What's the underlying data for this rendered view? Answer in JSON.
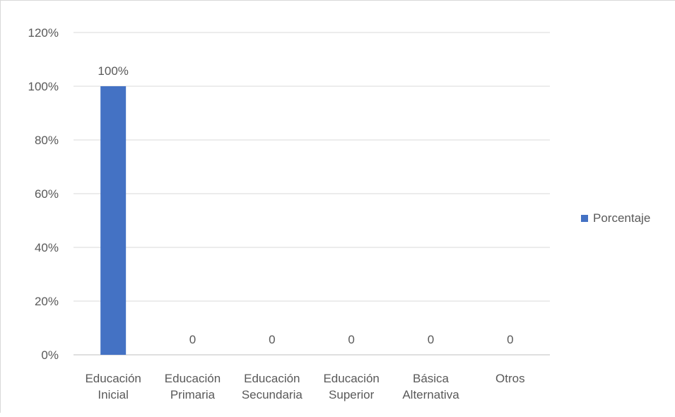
{
  "chart_data": {
    "type": "bar",
    "categories": [
      [
        "Educación",
        "Inicial"
      ],
      [
        "Educación",
        "Primaria"
      ],
      [
        "Educación",
        "Secundaria"
      ],
      [
        "Educación",
        "Superior"
      ],
      [
        "Básica",
        "Alternativa"
      ],
      [
        "Otros"
      ]
    ],
    "series": [
      {
        "name": "Porcentaje",
        "values": [
          1.0,
          0,
          0,
          0,
          0,
          0
        ],
        "data_labels": [
          "100%",
          "0",
          "0",
          "0",
          "0",
          "0"
        ],
        "color": "#4472c4"
      }
    ],
    "y_ticks": [
      "0%",
      "20%",
      "40%",
      "60%",
      "80%",
      "100%",
      "120%"
    ],
    "ylim": [
      0,
      1.2
    ],
    "grid": true,
    "legend_position": "right",
    "title": "",
    "xlabel": "",
    "ylabel": ""
  }
}
